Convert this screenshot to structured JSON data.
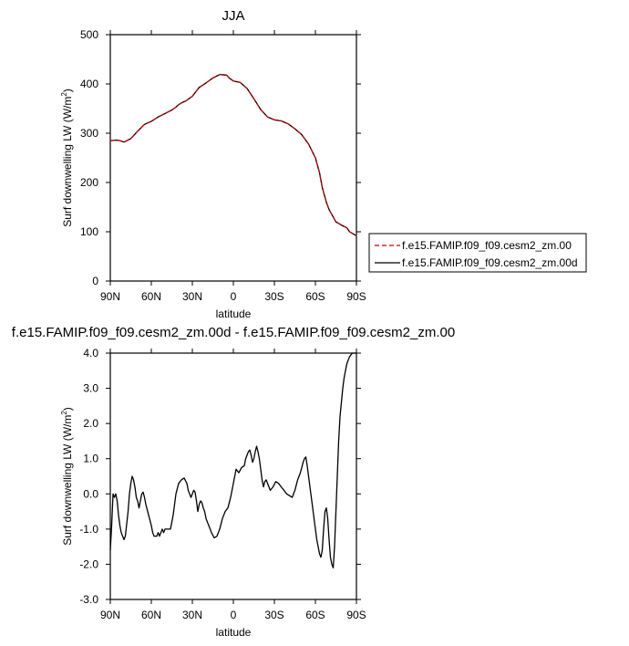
{
  "chart_data": [
    {
      "type": "line",
      "title": "JJA",
      "xlabel": "latitude",
      "ylabel_main": "Surf downwelling LW (W/m",
      "ylabel_sup": "2",
      "ylabel_close": ")",
      "xlim": [
        90,
        -90
      ],
      "ylim": [
        0,
        500
      ],
      "x_ticks": [
        90,
        60,
        30,
        0,
        -30,
        -60,
        -90
      ],
      "x_tick_labels": [
        "90N",
        "60N",
        "30N",
        "0",
        "30S",
        "60S",
        "90S"
      ],
      "y_ticks": [
        0,
        100,
        200,
        300,
        400,
        500
      ],
      "y_tick_labels": [
        "0",
        "100",
        "200",
        "300",
        "400",
        "500"
      ],
      "legend": "right",
      "series": [
        {
          "name": "f.e15.FAMIP.f09_f09.cesm2_zm.00",
          "color": "#cc0000",
          "dash": true,
          "x": [
            90,
            85,
            83,
            80,
            75,
            70,
            65,
            60,
            55,
            50,
            45,
            42,
            40,
            37,
            35,
            30,
            25,
            20,
            15,
            10,
            5,
            3,
            0,
            -5,
            -10,
            -15,
            -20,
            -25,
            -30,
            -35,
            -40,
            -45,
            -50,
            -55,
            -60,
            -63,
            -65,
            -68,
            -70,
            -75,
            -80,
            -83,
            -85,
            -88,
            -90
          ],
          "y": [
            285,
            286,
            285,
            282,
            289,
            304,
            318,
            324,
            333,
            340,
            347,
            353,
            358,
            363,
            365,
            375,
            393,
            402,
            412,
            419,
            418,
            412,
            406,
            403,
            391,
            370,
            348,
            333,
            327,
            325,
            319,
            309,
            297,
            278,
            250,
            220,
            190,
            160,
            145,
            120,
            112,
            108,
            100,
            95,
            92
          ]
        },
        {
          "name": "f.e15.FAMIP.f09_f09.cesm2_zm.00d",
          "color": "#000000",
          "dash": false,
          "x": [
            90,
            85,
            83,
            80,
            75,
            70,
            65,
            60,
            55,
            50,
            45,
            42,
            40,
            37,
            35,
            30,
            25,
            20,
            15,
            10,
            5,
            3,
            0,
            -5,
            -10,
            -15,
            -20,
            -25,
            -30,
            -35,
            -40,
            -45,
            -50,
            -55,
            -60,
            -63,
            -65,
            -68,
            -70,
            -75,
            -80,
            -83,
            -85,
            -88,
            -90
          ],
          "y": [
            285,
            286,
            285,
            282,
            289,
            304,
            318,
            324,
            333,
            340,
            347,
            353,
            358,
            363,
            365,
            375,
            393,
            402,
            412,
            419,
            418,
            412,
            406,
            403,
            391,
            370,
            348,
            333,
            327,
            325,
            319,
            309,
            297,
            278,
            250,
            220,
            190,
            160,
            145,
            120,
            112,
            108,
            100,
            95,
            92
          ]
        }
      ]
    },
    {
      "type": "line",
      "title": "f.e15.FAMIP.f09_f09.cesm2_zm.00d - f.e15.FAMIP.f09_f09.cesm2_zm.00",
      "xlabel": "latitude",
      "ylabel_main": "Surf downwelling LW (W/m",
      "ylabel_sup": "2",
      "ylabel_close": ")",
      "xlim": [
        90,
        -90
      ],
      "ylim": [
        -3,
        4
      ],
      "x_ticks": [
        90,
        60,
        30,
        0,
        -30,
        -60,
        -90
      ],
      "x_tick_labels": [
        "90N",
        "60N",
        "30N",
        "0",
        "30S",
        "60S",
        "90S"
      ],
      "y_ticks": [
        -3,
        -2,
        -1,
        0,
        1,
        2,
        3,
        4
      ],
      "y_tick_labels": [
        "-3.0",
        "-2.0",
        "-1.0",
        "0.0",
        "1.0",
        "2.0",
        "3.0",
        "4.0"
      ],
      "series": [
        {
          "name": "",
          "color": "#000000",
          "dash": false,
          "x": [
            90,
            89,
            88,
            87,
            86,
            85,
            84,
            83,
            82,
            81,
            80,
            79,
            77,
            76,
            75,
            74,
            73,
            72,
            71,
            70,
            69,
            68,
            67,
            66,
            65,
            64,
            62,
            60,
            59,
            58,
            56,
            55,
            54,
            53,
            52,
            51,
            50,
            49,
            48,
            46,
            44,
            42,
            40,
            38,
            36,
            34,
            33,
            32,
            31,
            30,
            29,
            28,
            27,
            26,
            25,
            24,
            23,
            22,
            21,
            20,
            18,
            16,
            14,
            12,
            10,
            8,
            6,
            4,
            2,
            0,
            -2,
            -4,
            -6,
            -8,
            -9,
            -10,
            -11,
            -12,
            -13,
            -14,
            -15,
            -16,
            -17,
            -18,
            -19,
            -20,
            -21,
            -22,
            -23,
            -24,
            -25,
            -27,
            -29,
            -31,
            -33,
            -35,
            -37,
            -39,
            -41,
            -43,
            -45,
            -47,
            -49,
            -50,
            -51,
            -52,
            -53,
            -54,
            -55,
            -56,
            -57,
            -58,
            -59,
            -60,
            -61,
            -62,
            -63,
            -64,
            -65,
            -66,
            -67,
            -68,
            -69,
            -70,
            -71,
            -72,
            -73,
            -74,
            -75,
            -76,
            -77,
            -78,
            -79,
            -80,
            -81,
            -82,
            -83,
            -84,
            -85,
            -86,
            -87,
            -88,
            -89,
            -90
          ],
          "y": [
            -1.6,
            -0.9,
            0.0,
            -0.1,
            0.0,
            -0.2,
            -0.6,
            -0.9,
            -1.1,
            -1.2,
            -1.3,
            -1.2,
            -0.5,
            0.0,
            0.3,
            0.5,
            0.4,
            0.2,
            -0.1,
            -0.2,
            -0.4,
            -0.2,
            0.0,
            0.05,
            -0.1,
            -0.3,
            -0.6,
            -0.9,
            -1.1,
            -1.2,
            -1.2,
            -1.1,
            -1.2,
            -1.1,
            -1.0,
            -1.1,
            -1.0,
            -1.0,
            -1.0,
            -1.0,
            -0.6,
            0.0,
            0.3,
            0.4,
            0.45,
            0.3,
            0.1,
            0.0,
            -0.1,
            0.0,
            0.1,
            0.05,
            -0.2,
            -0.5,
            -0.3,
            -0.2,
            -0.25,
            -0.4,
            -0.5,
            -0.7,
            -0.9,
            -1.1,
            -1.25,
            -1.2,
            -1.0,
            -0.7,
            -0.5,
            -0.4,
            -0.1,
            0.3,
            0.7,
            0.6,
            0.75,
            0.8,
            1.0,
            1.1,
            1.2,
            1.25,
            1.1,
            0.9,
            1.0,
            1.2,
            1.35,
            1.2,
            1.0,
            0.7,
            0.4,
            0.2,
            0.35,
            0.4,
            0.3,
            0.1,
            0.2,
            0.35,
            0.3,
            0.2,
            0.1,
            0.0,
            -0.05,
            -0.1,
            0.1,
            0.4,
            0.6,
            0.75,
            0.9,
            1.0,
            1.05,
            0.8,
            0.5,
            0.2,
            -0.1,
            -0.4,
            -0.7,
            -1.0,
            -1.3,
            -1.5,
            -1.7,
            -1.8,
            -1.6,
            -1.0,
            -0.5,
            -0.4,
            -0.7,
            -1.3,
            -1.8,
            -2.0,
            -2.1,
            -1.5,
            -0.5,
            0.5,
            1.5,
            2.2,
            2.6,
            3.0,
            3.3,
            3.5,
            3.7,
            3.8,
            3.9,
            3.95,
            4.0,
            4.0,
            4.0,
            4.0
          ]
        }
      ]
    }
  ]
}
